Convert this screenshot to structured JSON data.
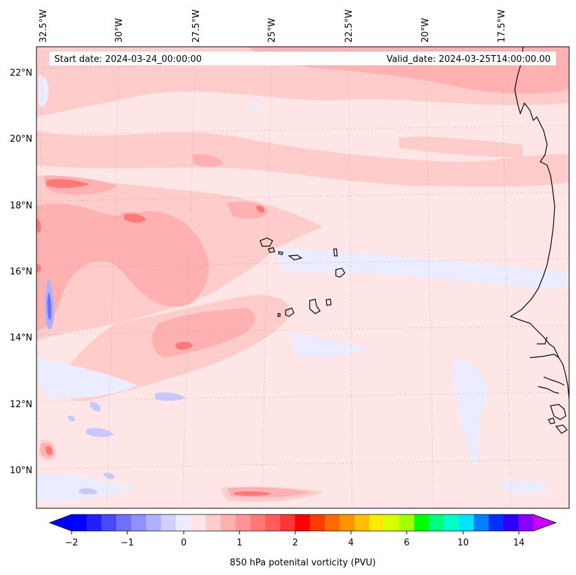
{
  "map": {
    "start_date_text": "Start date: 2024-03-24_00:00:00",
    "valid_date_text": "Valid_date: 2024-03-25T14:00:00.00",
    "longitude_labels": [
      "32.5°W",
      "30°W",
      "27.5°W",
      "25°W",
      "22.5°W",
      "20°W",
      "17.5°W"
    ],
    "latitude_labels": [
      "22°N",
      "20°N",
      "18°N",
      "16°N",
      "14°N",
      "12°N",
      "10°N"
    ]
  },
  "colorbar": {
    "label": "850 hPa potenital vorticity (PVU)",
    "tick_labels": [
      "−2",
      "−1",
      "0",
      "1",
      "2",
      "4",
      "6",
      "10",
      "14"
    ],
    "colors": [
      "#0000ff",
      "#2020ff",
      "#4848ff",
      "#7070ff",
      "#9090ff",
      "#b0b0ff",
      "#d0d0ff",
      "#ececff",
      "#ffe6e6",
      "#ffcccc",
      "#ffb0b0",
      "#ff9494",
      "#ff7878",
      "#ff5c5c",
      "#ff3636",
      "#ff0000",
      "#ff3c00",
      "#ff6a00",
      "#ff9400",
      "#ffbe00",
      "#ffea00",
      "#d8ff00",
      "#a4ff00",
      "#00ff00",
      "#00ff80",
      "#00ffc8",
      "#00e4ff",
      "#0080ff",
      "#0030ff",
      "#2a00ff",
      "#8800ff"
    ],
    "under_color": "#0000ff",
    "over_color": "#cc00ff"
  }
}
